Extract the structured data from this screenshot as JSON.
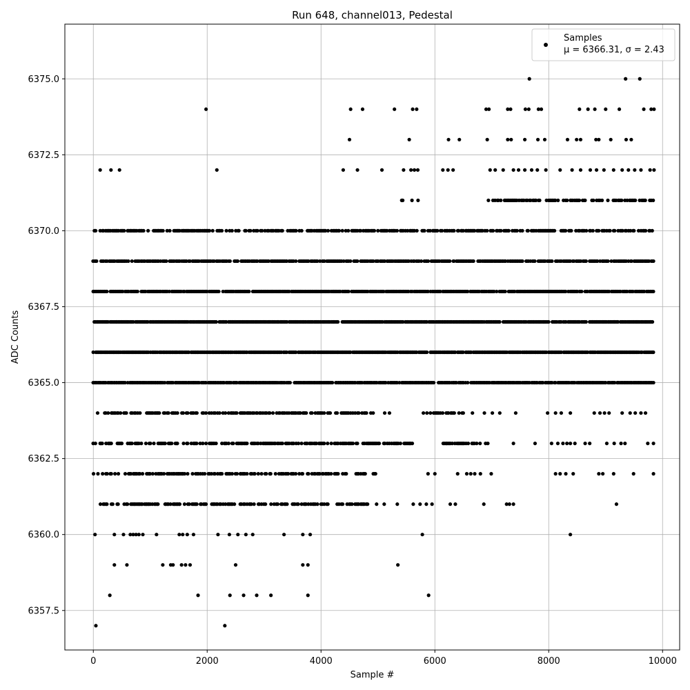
{
  "chart_data": {
    "type": "scatter",
    "title": "Run 648, channel013, Pedestal",
    "xlabel": "Sample #",
    "ylabel": "ADC Counts",
    "xlim": [
      -500,
      10300
    ],
    "ylim": [
      6356.2,
      6376.8
    ],
    "xticks": [
      0,
      2000,
      4000,
      6000,
      8000,
      10000
    ],
    "xtick_labels": [
      "0",
      "2000",
      "4000",
      "6000",
      "8000",
      "10000"
    ],
    "yticks": [
      6357.5,
      6360.0,
      6362.5,
      6365.0,
      6367.5,
      6370.0,
      6372.5,
      6375.0
    ],
    "ytick_labels": [
      "6357.5",
      "6360.0",
      "6362.5",
      "6365.0",
      "6367.5",
      "6370.0",
      "6372.5",
      "6375.0"
    ],
    "grid": true,
    "legend_position": "top-right",
    "marker_color": "#000000",
    "series": [
      {
        "name": "Samples",
        "legend_label": "Samples",
        "legend_stats": "μ = 6366.31, σ = 2.43",
        "mean": 6366.31,
        "std": 2.43,
        "sample_range": [
          0,
          9850
        ],
        "counts_by_value": [
          {
            "value": 6357,
            "count": 2
          },
          {
            "value": 6358,
            "count": 8
          },
          {
            "value": 6359,
            "count": 12
          },
          {
            "value": 6360,
            "count": 20
          },
          {
            "value": 6361,
            "count": 230
          },
          {
            "value": 6362,
            "count": 290
          },
          {
            "value": 6363,
            "count": 530
          },
          {
            "value": 6364,
            "count": 500
          },
          {
            "value": 6365,
            "count": 1290
          },
          {
            "value": 6366,
            "count": 1450
          },
          {
            "value": 6367,
            "count": 1520
          },
          {
            "value": 6368,
            "count": 1390
          },
          {
            "value": 6369,
            "count": 1180
          },
          {
            "value": 6370,
            "count": 860
          },
          {
            "value": 6371,
            "count": 320
          },
          {
            "value": 6372,
            "count": 150
          },
          {
            "value": 6373,
            "count": 30
          },
          {
            "value": 6374,
            "count": 28
          },
          {
            "value": 6375,
            "count": 3
          }
        ],
        "points": [
          [
            45,
            6357
          ],
          [
            2310,
            6357
          ],
          [
            290,
            6358
          ],
          [
            1840,
            6358
          ],
          [
            2400,
            6358
          ],
          [
            2640,
            6358
          ],
          [
            2870,
            6358
          ],
          [
            3120,
            6358
          ],
          [
            3770,
            6358
          ],
          [
            5890,
            6358
          ],
          [
            370,
            6359
          ],
          [
            590,
            6359
          ],
          [
            1220,
            6359
          ],
          [
            1360,
            6359
          ],
          [
            1400,
            6359
          ],
          [
            1550,
            6359
          ],
          [
            1620,
            6359
          ],
          [
            1700,
            6359
          ],
          [
            2500,
            6359
          ],
          [
            3680,
            6359
          ],
          [
            3770,
            6359
          ],
          [
            5350,
            6359
          ],
          [
            30,
            6360
          ],
          [
            370,
            6360
          ],
          [
            530,
            6360
          ],
          [
            650,
            6360
          ],
          [
            700,
            6360
          ],
          [
            750,
            6360
          ],
          [
            800,
            6360
          ],
          [
            870,
            6360
          ],
          [
            1110,
            6360
          ],
          [
            1510,
            6360
          ],
          [
            1570,
            6360
          ],
          [
            1650,
            6360
          ],
          [
            1760,
            6360
          ],
          [
            2190,
            6360
          ],
          [
            2390,
            6360
          ],
          [
            2540,
            6360
          ],
          [
            2680,
            6360
          ],
          [
            2800,
            6360
          ],
          [
            3350,
            6360
          ],
          [
            3680,
            6360
          ],
          [
            3810,
            6360
          ],
          [
            5780,
            6360
          ],
          [
            8380,
            6360
          ],
          [
            5110,
            6361
          ],
          [
            5340,
            6361
          ],
          [
            5620,
            6361
          ],
          [
            5740,
            6361
          ],
          [
            5850,
            6361
          ],
          [
            5950,
            6361
          ],
          [
            6270,
            6361
          ],
          [
            6360,
            6361
          ],
          [
            6860,
            6361
          ],
          [
            7260,
            6361
          ],
          [
            7310,
            6361
          ],
          [
            7380,
            6361
          ],
          [
            9190,
            6361
          ],
          [
            5880,
            6362
          ],
          [
            6000,
            6362
          ],
          [
            6400,
            6362
          ],
          [
            6560,
            6362
          ],
          [
            6630,
            6362
          ],
          [
            6700,
            6362
          ],
          [
            6800,
            6362
          ],
          [
            6990,
            6362
          ],
          [
            8120,
            6362
          ],
          [
            8200,
            6362
          ],
          [
            8300,
            6362
          ],
          [
            8430,
            6362
          ],
          [
            8880,
            6362
          ],
          [
            8950,
            6362
          ],
          [
            9140,
            6362
          ],
          [
            9490,
            6362
          ],
          [
            9840,
            6362
          ],
          [
            6930,
            6363
          ],
          [
            7380,
            6363
          ],
          [
            7760,
            6363
          ],
          [
            8050,
            6363
          ],
          [
            8160,
            6363
          ],
          [
            8250,
            6363
          ],
          [
            8320,
            6363
          ],
          [
            8380,
            6363
          ],
          [
            8460,
            6363
          ],
          [
            8640,
            6363
          ],
          [
            8720,
            6363
          ],
          [
            9020,
            6363
          ],
          [
            9150,
            6363
          ],
          [
            9270,
            6363
          ],
          [
            9340,
            6363
          ],
          [
            9740,
            6363
          ],
          [
            9840,
            6363
          ],
          [
            6660,
            6364
          ],
          [
            6870,
            6364
          ],
          [
            7010,
            6364
          ],
          [
            7140,
            6364
          ],
          [
            7420,
            6364
          ],
          [
            7980,
            6364
          ],
          [
            8120,
            6364
          ],
          [
            8220,
            6364
          ],
          [
            8380,
            6364
          ],
          [
            8800,
            6364
          ],
          [
            8900,
            6364
          ],
          [
            8980,
            6364
          ],
          [
            9060,
            6364
          ],
          [
            9290,
            6364
          ],
          [
            9430,
            6364
          ],
          [
            9520,
            6364
          ],
          [
            9620,
            6364
          ],
          [
            9700,
            6364
          ],
          [
            120,
            6372
          ],
          [
            310,
            6372
          ],
          [
            460,
            6372
          ],
          [
            2170,
            6372
          ],
          [
            4390,
            6372
          ],
          [
            4640,
            6372
          ],
          [
            5070,
            6372
          ],
          [
            5450,
            6372
          ],
          [
            5580,
            6372
          ],
          [
            5640,
            6372
          ],
          [
            5700,
            6372
          ],
          [
            6140,
            6372
          ],
          [
            6230,
            6372
          ],
          [
            6320,
            6372
          ],
          [
            6970,
            6372
          ],
          [
            7060,
            6372
          ],
          [
            7200,
            6372
          ],
          [
            7380,
            6372
          ],
          [
            7470,
            6372
          ],
          [
            7580,
            6372
          ],
          [
            7700,
            6372
          ],
          [
            7800,
            6372
          ],
          [
            7950,
            6372
          ],
          [
            8200,
            6372
          ],
          [
            8410,
            6372
          ],
          [
            8560,
            6372
          ],
          [
            8730,
            6372
          ],
          [
            8840,
            6372
          ],
          [
            8970,
            6372
          ],
          [
            9140,
            6372
          ],
          [
            9290,
            6372
          ],
          [
            9400,
            6372
          ],
          [
            9510,
            6372
          ],
          [
            9620,
            6372
          ],
          [
            9780,
            6372
          ],
          [
            9850,
            6372
          ],
          [
            4500,
            6373
          ],
          [
            5550,
            6373
          ],
          [
            6240,
            6373
          ],
          [
            6430,
            6373
          ],
          [
            6920,
            6373
          ],
          [
            7280,
            6373
          ],
          [
            7340,
            6373
          ],
          [
            7580,
            6373
          ],
          [
            7810,
            6373
          ],
          [
            7930,
            6373
          ],
          [
            8330,
            6373
          ],
          [
            8490,
            6373
          ],
          [
            8560,
            6373
          ],
          [
            8830,
            6373
          ],
          [
            8880,
            6373
          ],
          [
            9090,
            6373
          ],
          [
            9360,
            6373
          ],
          [
            9450,
            6373
          ],
          [
            1980,
            6374
          ],
          [
            4520,
            6374
          ],
          [
            4730,
            6374
          ],
          [
            5290,
            6374
          ],
          [
            5610,
            6374
          ],
          [
            5680,
            6374
          ],
          [
            6900,
            6374
          ],
          [
            6950,
            6374
          ],
          [
            7280,
            6374
          ],
          [
            7330,
            6374
          ],
          [
            7590,
            6374
          ],
          [
            7650,
            6374
          ],
          [
            7820,
            6374
          ],
          [
            7870,
            6374
          ],
          [
            8540,
            6374
          ],
          [
            8690,
            6374
          ],
          [
            8810,
            6374
          ],
          [
            9000,
            6374
          ],
          [
            9240,
            6374
          ],
          [
            9670,
            6374
          ],
          [
            9800,
            6374
          ],
          [
            9850,
            6374
          ],
          [
            7660,
            6375
          ],
          [
            9350,
            6375
          ],
          [
            9600,
            6375
          ]
        ],
        "dense_bands": [
          {
            "value": 6361,
            "ranges": [
              [
                0,
                5000
              ]
            ]
          },
          {
            "value": 6362,
            "ranges": [
              [
                0,
                5000
              ]
            ]
          },
          {
            "value": 6363,
            "ranges": [
              [
                0,
                5600
              ],
              [
                6150,
                6900
              ]
            ]
          },
          {
            "value": 6364,
            "ranges": [
              [
                0,
                5200
              ],
              [
                5800,
                6500
              ]
            ]
          },
          {
            "value": 6365,
            "ranges": [
              [
                0,
                9850
              ]
            ]
          },
          {
            "value": 6366,
            "ranges": [
              [
                0,
                9850
              ]
            ]
          },
          {
            "value": 6367,
            "ranges": [
              [
                0,
                9850
              ]
            ]
          },
          {
            "value": 6368,
            "ranges": [
              [
                0,
                9850
              ]
            ]
          },
          {
            "value": 6369,
            "ranges": [
              [
                0,
                9850
              ]
            ]
          },
          {
            "value": 6370,
            "ranges": [
              [
                0,
                9850
              ]
            ]
          },
          {
            "value": 6371,
            "ranges": [
              [
                5400,
                5700
              ],
              [
                6900,
                9850
              ]
            ]
          }
        ],
        "band_density": [
          {
            "value": 6361,
            "fill": 0.55
          },
          {
            "value": 6362,
            "fill": 0.5
          },
          {
            "value": 6363,
            "fill": 0.62
          },
          {
            "value": 6364,
            "fill": 0.55
          },
          {
            "value": 6365,
            "fill": 0.92
          },
          {
            "value": 6366,
            "fill": 0.92
          },
          {
            "value": 6367,
            "fill": 0.92
          },
          {
            "value": 6368,
            "fill": 0.88
          },
          {
            "value": 6369,
            "fill": 0.8
          },
          {
            "value": 6370,
            "fill": 0.62
          },
          {
            "value": 6371,
            "fill": 0.45
          }
        ],
        "sparse_seed": 648
      }
    ]
  }
}
